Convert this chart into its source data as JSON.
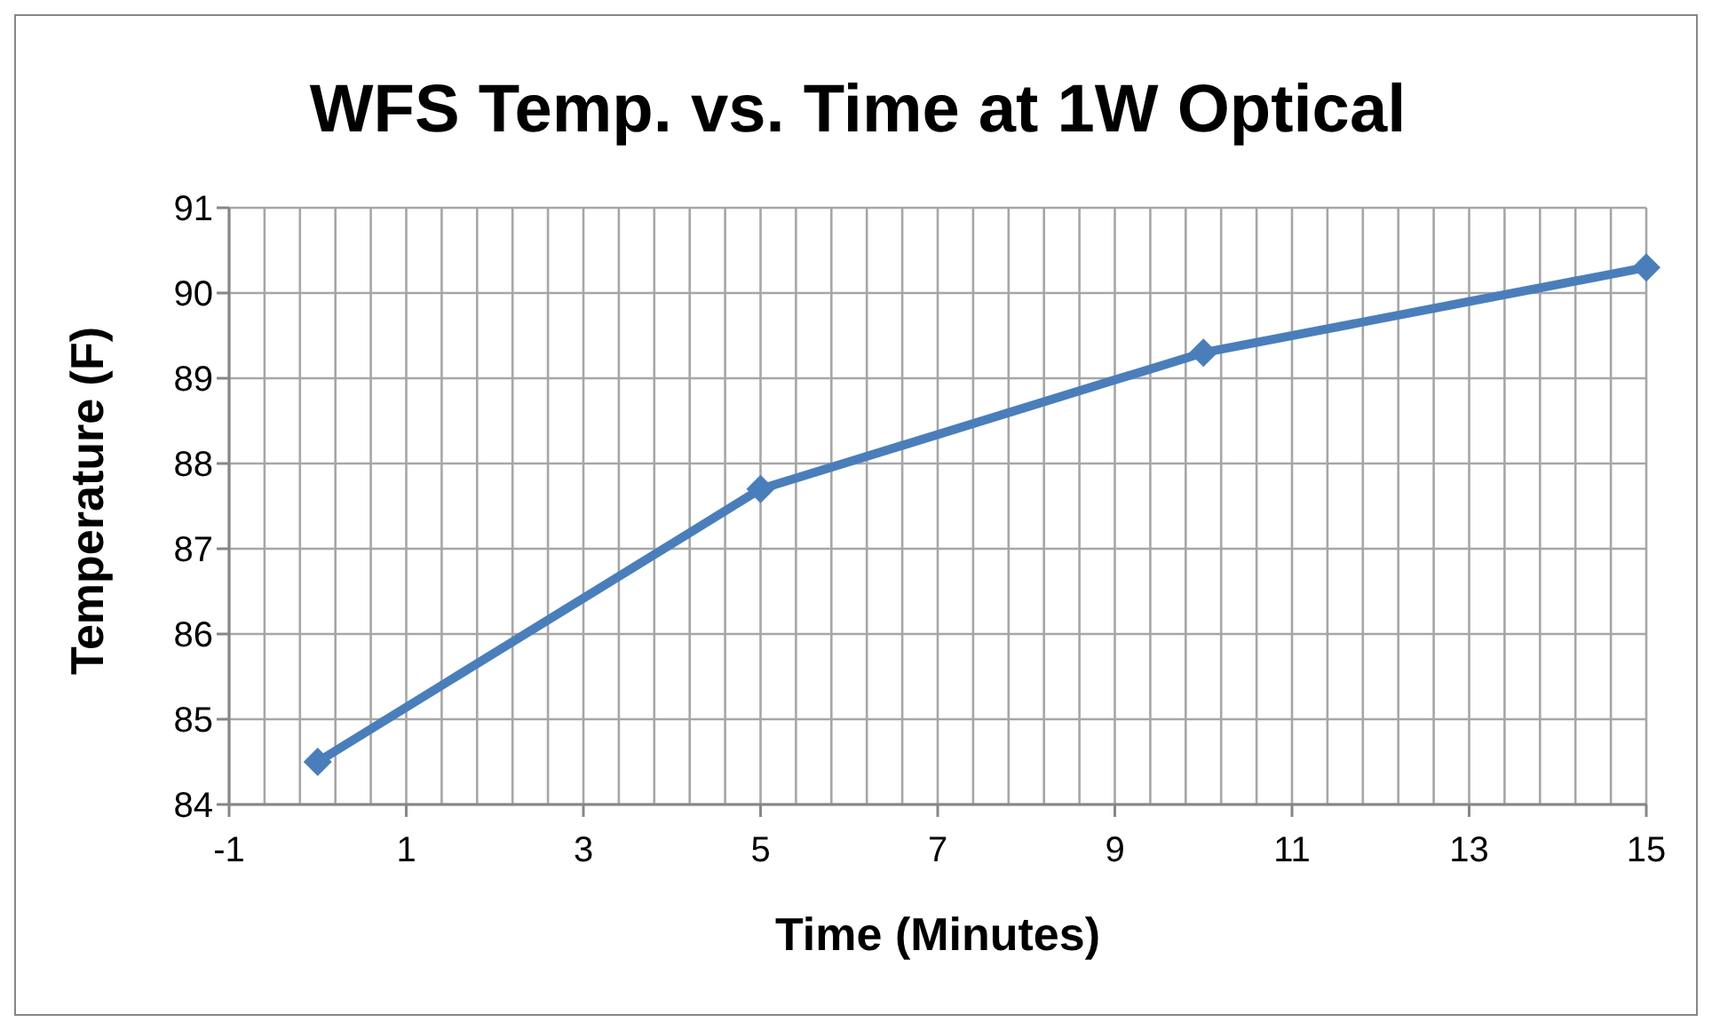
{
  "chart_data": {
    "type": "line",
    "title": "WFS Temp. vs. Time at 1W Optical",
    "xlabel": "Time (Minutes)",
    "ylabel": "Temperature (F)",
    "x": [
      0,
      5,
      10,
      15
    ],
    "series": [
      {
        "color": "#4a7ebb",
        "values": [
          84.5,
          87.7,
          89.3,
          90.3
        ]
      }
    ],
    "xlim": [
      -1,
      15
    ],
    "xticks": [
      -1,
      {
        "value": -0.6,
        "label": null
      },
      {
        "value": -0.2,
        "label": null
      },
      {
        "value": 0.2,
        "label": null
      },
      {
        "value": 0.6,
        "label": null
      },
      1,
      {
        "value": 1.4,
        "label": null
      },
      {
        "value": 1.8,
        "label": null
      },
      {
        "value": 2.2,
        "label": null
      },
      {
        "value": 2.6,
        "label": null
      },
      3,
      {
        "value": 3.4,
        "label": null
      },
      {
        "value": 3.8,
        "label": null
      },
      {
        "value": 4.2,
        "label": null
      },
      {
        "value": 4.6,
        "label": null
      },
      5,
      {
        "value": 5.4,
        "label": null
      },
      {
        "value": 5.8,
        "label": null
      },
      {
        "value": 6.2,
        "label": null
      },
      {
        "value": 6.6,
        "label": null
      },
      7,
      {
        "value": 7.4,
        "label": null
      },
      {
        "value": 7.8,
        "label": null
      },
      {
        "value": 8.2,
        "label": null
      },
      {
        "value": 8.6,
        "label": null
      },
      9,
      {
        "value": 9.4,
        "label": null
      },
      {
        "value": 9.8,
        "label": null
      },
      {
        "value": 10.2,
        "label": null
      },
      {
        "value": 10.6,
        "label": null
      },
      11,
      {
        "value": 11.4,
        "label": null
      },
      {
        "value": 11.8,
        "label": null
      },
      {
        "value": 12.2,
        "label": null
      },
      {
        "value": 12.6,
        "label": null
      },
      13,
      {
        "value": 13.4,
        "label": null
      },
      {
        "value": 13.8,
        "label": null
      },
      {
        "value": 14.2,
        "label": null
      },
      {
        "value": 14.6,
        "label": null
      },
      15
    ],
    "ylim": [
      84,
      91
    ],
    "yticks": [
      84,
      85,
      86,
      87,
      88,
      89,
      90,
      91
    ],
    "grid": true,
    "marker": "diamond",
    "line_style": "solid",
    "legend": false
  }
}
